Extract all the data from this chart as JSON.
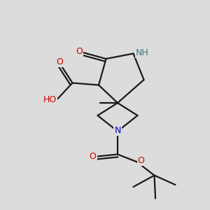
{
  "background_color": "#dcdcdc",
  "line_color": "#1a1a1a",
  "bond_width": 1.6,
  "atom_colors": {
    "O": "#cc0000",
    "N": "#0000cc",
    "H": "#3a7a7a",
    "C": "#1a1a1a"
  },
  "figsize": [
    3.0,
    3.0
  ],
  "dpi": 100,
  "xlim": [
    0,
    10
  ],
  "ylim": [
    0,
    10
  ]
}
